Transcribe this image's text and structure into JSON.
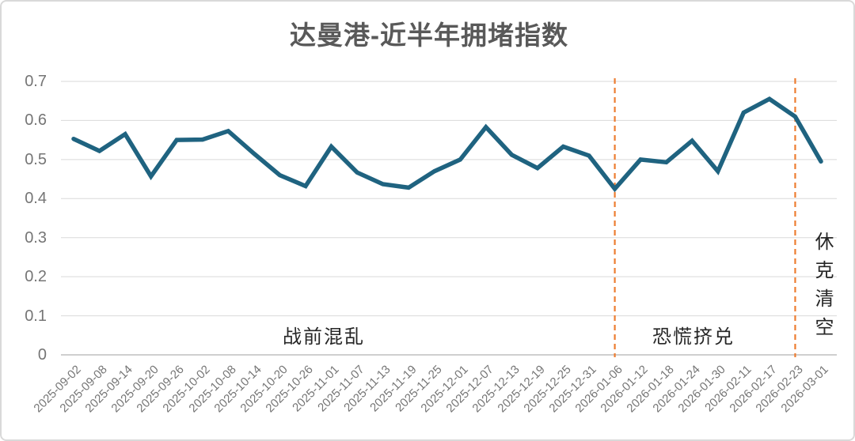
{
  "chart_data": {
    "type": "line",
    "title": "达曼港-近半年拥堵指数",
    "xlabel": "",
    "ylabel": "",
    "ylim": [
      0,
      0.7
    ],
    "ytick_labels": [
      "0",
      "0.1",
      "0.2",
      "0.3",
      "0.4",
      "0.5",
      "0.6",
      "0.7"
    ],
    "grid": "horizontal",
    "legend": "none",
    "categories": [
      "2025-09-02",
      "2025-09-08",
      "2025-09-14",
      "2025-09-20",
      "2025-09-26",
      "2025-10-02",
      "2025-10-08",
      "2025-10-14",
      "2025-10-20",
      "2025-10-26",
      "2025-11-01",
      "2025-11-07",
      "2025-11-13",
      "2025-11-19",
      "2025-11-25",
      "2025-12-01",
      "2025-12-07",
      "2025-12-13",
      "2025-12-19",
      "2025-12-25",
      "2025-12-31",
      "2026-01-06",
      "2026-01-12",
      "2026-01-18",
      "2026-01-24",
      "2026-01-30",
      "2026-02-11",
      "2026-02-17",
      "2026-02-23",
      "2026-03-01"
    ],
    "series": [
      {
        "name": "拥堵指数",
        "color": "#1f6380",
        "values": [
          0.553,
          0.522,
          0.565,
          0.457,
          0.55,
          0.551,
          0.573,
          0.515,
          0.46,
          0.432,
          0.533,
          0.467,
          0.437,
          0.428,
          0.47,
          0.5,
          0.583,
          0.512,
          0.478,
          0.533,
          0.51,
          0.425,
          0.5,
          0.493,
          0.548,
          0.47,
          0.62,
          0.655,
          0.61,
          0.495
        ]
      }
    ],
    "marker_lines": [
      {
        "at_category": "2026-01-06",
        "style": "dashed",
        "color": "#ed7d31"
      },
      {
        "at_category": "2026-02-23",
        "style": "dashed",
        "color": "#ed7d31"
      }
    ],
    "annotations": [
      {
        "name": "pre-war-chaos",
        "text": "战前混乱",
        "orientation": "horizontal"
      },
      {
        "name": "panic-bank-run",
        "text": "恐慌挤兑",
        "orientation": "horizontal"
      },
      {
        "name": "shock-clearing",
        "text": "休克清空",
        "orientation": "vertical"
      }
    ]
  },
  "colors": {
    "line": "#1f6380",
    "marker_line": "#ed7d31",
    "title": "#595959",
    "tick_label": "#757575",
    "annotation": "#262626",
    "gridline": "#d9d9d9",
    "axis_line": "#bfbfbf"
  }
}
